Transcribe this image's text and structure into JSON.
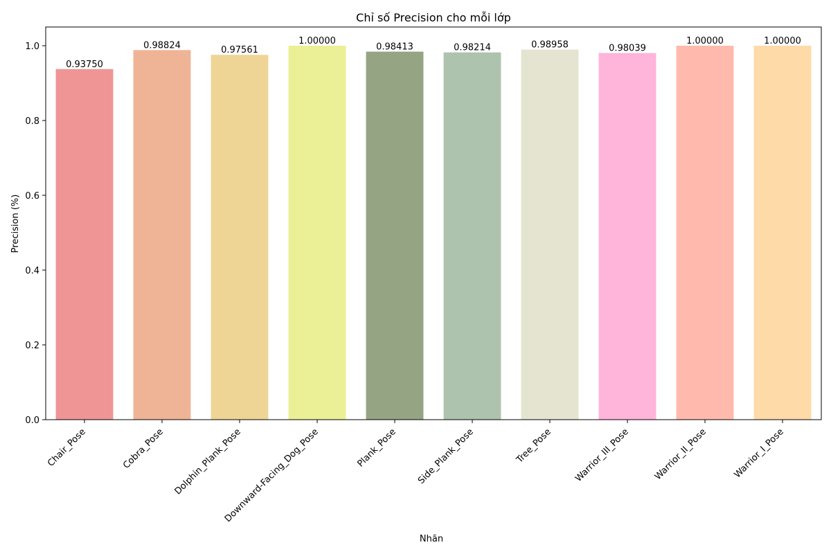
{
  "chart_data": {
    "type": "bar",
    "title": "Chỉ số Precision cho mỗi lớp",
    "xlabel": "Nhãn",
    "ylabel": "Precision (%)",
    "ylim": [
      0,
      1.05
    ],
    "yticks": [
      0.0,
      0.2,
      0.4,
      0.6,
      0.8,
      1.0
    ],
    "ytick_labels": [
      "0.0",
      "0.2",
      "0.4",
      "0.6",
      "0.8",
      "1.0"
    ],
    "grid": false,
    "categories": [
      "Chair_Pose",
      "Cobra_Pose",
      "Dolphin_Plank_Pose",
      "Downward-Facing_Dog_Pose",
      "Plank_Pose",
      "Side_Plank_Pose",
      "Tree_Pose",
      "Warrior_III_Pose",
      "Warrior_II_Pose",
      "Warrior_I_Pose"
    ],
    "values": [
      0.9375,
      0.98824,
      0.97561,
      1.0,
      0.98413,
      0.98214,
      0.98958,
      0.98039,
      1.0,
      1.0
    ],
    "value_labels": [
      "0.93750",
      "0.98824",
      "0.97561",
      "1.00000",
      "0.98413",
      "0.98214",
      "0.98958",
      "0.98039",
      "1.00000",
      "1.00000"
    ],
    "colors": [
      "#ef9595",
      "#efb495",
      "#efd595",
      "#ebef95",
      "#95a584",
      "#aec3ae",
      "#e4e4d0",
      "#ffb4d9",
      "#ffbaad",
      "#ffdaa9"
    ]
  }
}
